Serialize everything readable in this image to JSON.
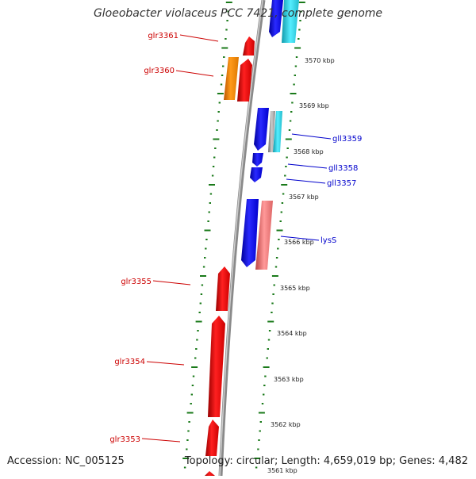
{
  "title": "Gloeobacter violaceus PCC 7421, complete genome",
  "footer": {
    "accession": "Accession: NC_005125",
    "topology": "Topology: circular; Length: 4,659,019 bp; Genes: 4,482"
  },
  "colors": {
    "forward_gene": "#ee0000",
    "reverse_gene": "#1010ee",
    "orange_gene": "#ff8800",
    "cyan_gene": "#22ccdd",
    "pink_gene": "#ee7777",
    "backbone": "#888888",
    "ticks": "#1a7a1a",
    "red_label": "#cc0000",
    "blue_label": "#0000cc"
  },
  "scale_labels": [
    "3570 kbp",
    "3569 kbp",
    "3568 kbp",
    "3567 kbp",
    "3566 kbp",
    "3565 kbp",
    "3564 kbp",
    "3563 kbp",
    "3562 kbp",
    "3561 kbp"
  ],
  "forward_genes": [
    "glr3361",
    "glr3360",
    "glr3355",
    "glr3354",
    "glr3353"
  ],
  "reverse_genes": [
    "gll3359",
    "gll3358",
    "gll3357",
    "lysS"
  ]
}
